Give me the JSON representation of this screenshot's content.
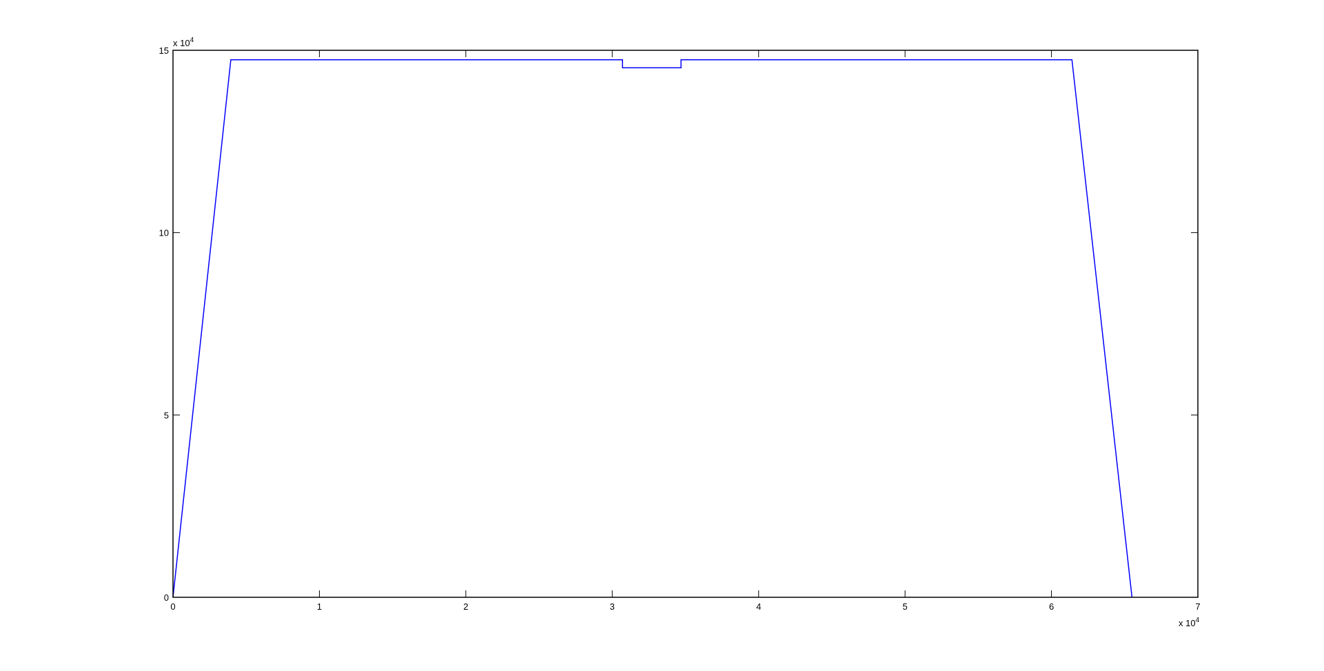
{
  "chart_data": {
    "type": "line",
    "title": "",
    "xlabel": "",
    "ylabel": "",
    "xlim": [
      0,
      70000
    ],
    "ylim": [
      0,
      150000
    ],
    "x_ticks": [
      0,
      10000,
      20000,
      30000,
      40000,
      50000,
      60000,
      70000
    ],
    "x_tick_labels": [
      "0",
      "1",
      "2",
      "3",
      "4",
      "5",
      "6",
      "7"
    ],
    "x_exponent_label": "x 10",
    "x_exponent": "4",
    "y_ticks": [
      0,
      50000,
      100000,
      150000
    ],
    "y_tick_labels": [
      "0",
      "5",
      "10",
      "15"
    ],
    "y_exponent_label": "x 10",
    "y_exponent": "4",
    "grid": false,
    "series": [
      {
        "color": "#0000ff",
        "x": [
          0,
          3950,
          30700,
          30700,
          34700,
          34700,
          61400,
          65500
        ],
        "y": [
          0,
          147400,
          147400,
          145200,
          145200,
          147400,
          147400,
          0
        ]
      }
    ]
  }
}
